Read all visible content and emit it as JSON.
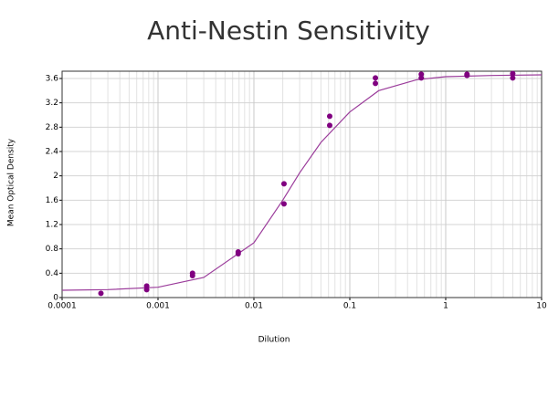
{
  "chart_data": {
    "type": "scatter",
    "title": "Anti-Nestin Sensitivity",
    "x_label": "Dilution",
    "y_label": "Mean Optical Density",
    "x_scale": "log",
    "grid": true,
    "xlim": [
      0.0001,
      10
    ],
    "xticks": [
      0.0001,
      0.001,
      0.01,
      0.1,
      1,
      10
    ],
    "ylim": [
      0,
      3.72
    ],
    "yticks": [
      0,
      0.4,
      0.8,
      1.2,
      1.6,
      2,
      2.4,
      2.8,
      3.2,
      3.6
    ],
    "points": {
      "color": "#800080",
      "x": [
        0.000254,
        0.000762,
        0.000762,
        0.00229,
        0.00229,
        0.00686,
        0.00686,
        0.0206,
        0.0206,
        0.0617,
        0.0617,
        0.185,
        0.185,
        0.556,
        0.556,
        1.667,
        1.667,
        5,
        5
      ],
      "values": [
        0.07,
        0.19,
        0.13,
        0.4,
        0.36,
        0.75,
        0.72,
        1.87,
        1.54,
        2.98,
        2.83,
        3.61,
        3.52,
        3.67,
        3.61,
        3.67,
        3.65,
        3.68,
        3.61
      ]
    },
    "curve": {
      "color": "#9b3c9b",
      "x": [
        0.0001,
        0.0003,
        0.001,
        0.003,
        0.01,
        0.02,
        0.03,
        0.05,
        0.1,
        0.2,
        0.5,
        1,
        3,
        10
      ],
      "values": [
        0.12,
        0.13,
        0.17,
        0.33,
        0.9,
        1.6,
        2.05,
        2.55,
        3.05,
        3.4,
        3.58,
        3.63,
        3.65,
        3.66
      ]
    }
  }
}
